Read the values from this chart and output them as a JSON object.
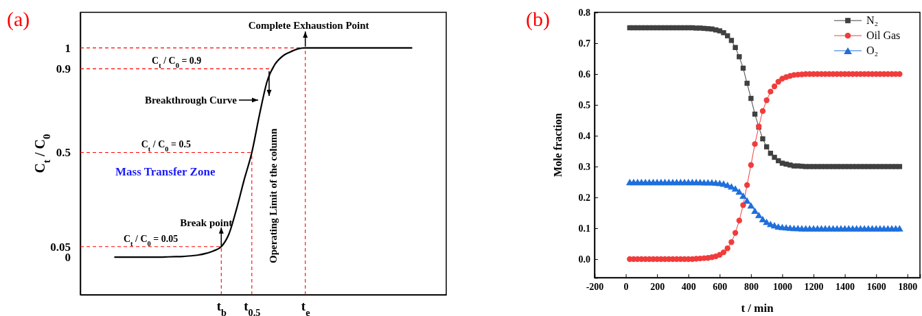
{
  "chart_data": [
    {
      "type": "line",
      "title": "(a)",
      "ylabel": "C$_{t}$ / C$_{0}$",
      "categories": [
        null,
        null,
        null,
        null,
        null,
        null,
        null,
        null,
        null,
        null,
        null,
        null,
        null,
        null,
        "t$_{b}$",
        null,
        null,
        null,
        "t$_{0.5}$",
        null,
        null,
        null,
        null,
        null,
        null,
        "t$_{e}$",
        null,
        null,
        null,
        null,
        null,
        null,
        null,
        null,
        null,
        null,
        null,
        null,
        null,
        null
      ],
      "ylim": [
        -0.18,
        1.17
      ],
      "yticks": [
        0,
        0.05,
        0.5,
        0.9,
        1
      ],
      "series": [
        {
          "color": "#000000",
          "values": [
            0,
            0,
            0,
            0,
            0,
            0,
            0,
            0.001,
            0.002,
            0.003,
            0.006,
            0.01,
            0.018,
            0.03,
            0.05,
            0.11,
            0.23,
            0.37,
            0.5,
            0.68,
            0.84,
            0.92,
            0.96,
            0.98,
            0.995,
            1,
            1,
            1,
            1,
            1,
            1,
            1,
            1,
            1,
            1,
            1,
            1,
            1,
            1,
            1
          ]
        }
      ],
      "marker": "none",
      "line_style": "solid",
      "ref_lines": [
        {
          "axis": "y",
          "value": 1,
          "color": "#ff0000",
          "line_style": "dashed"
        },
        {
          "axis": "y",
          "value": 0.9,
          "label": "C$_{t}$ / C$_{0}$ = 0.9",
          "color": "#ff0000",
          "line_style": "dashed"
        },
        {
          "axis": "y",
          "value": 0.5,
          "label": "C$_{t}$ / C$_{0}$ = 0.5",
          "color": "#ff0000",
          "line_style": "dashed"
        },
        {
          "axis": "y",
          "value": 0.05,
          "label": "C$_{t}$ / C$_{0}$ = 0.05",
          "color": "#ff0000",
          "line_style": "dashed"
        },
        {
          "axis": "x",
          "value": "t$_{b}$",
          "color": "#ff0000",
          "line_style": "dashed"
        },
        {
          "axis": "x",
          "value": "t$_{0.5}$",
          "color": "#ff0000",
          "line_style": "dashed"
        },
        {
          "axis": "x",
          "value": "t$_{e}$",
          "color": "#ff0000",
          "line_style": "dashed"
        }
      ],
      "annotations": [
        {
          "text": "Complete Exhaustion Point",
          "x": "t$_{e}$",
          "y": 1
        },
        "Breakthrough Curve",
        "Operating Limit of the column",
        {
          "text": "Break point",
          "x": "t$_{b}$",
          "y": 0.05
        },
        "Mass Transfer Zone"
      ]
    },
    {
      "type": "line",
      "title": "(b)",
      "xlabel": "t / min",
      "ylabel": "Mole fraction",
      "xlim": [
        -200,
        1880
      ],
      "ylim": [
        -0.06,
        0.8
      ],
      "xticks": [
        -200,
        0,
        200,
        400,
        600,
        800,
        1000,
        1200,
        1400,
        1600,
        1800
      ],
      "yticks": [
        {
          "value": 0,
          "label": "0.0"
        },
        0.1,
        0.2,
        0.3,
        0.4,
        0.5,
        0.6,
        0.7,
        0.8
      ],
      "legend": "top right",
      "line_style": "solid",
      "x": [
        25,
        50,
        75,
        100,
        125,
        150,
        175,
        200,
        225,
        250,
        275,
        300,
        325,
        350,
        375,
        400,
        425,
        450,
        475,
        500,
        525,
        550,
        575,
        600,
        625,
        650,
        675,
        700,
        725,
        750,
        775,
        800,
        825,
        850,
        875,
        900,
        925,
        950,
        975,
        1000,
        1025,
        1050,
        1075,
        1100,
        1125,
        1150,
        1175,
        1200,
        1225,
        1250,
        1275,
        1300,
        1325,
        1350,
        1375,
        1400,
        1425,
        1450,
        1475,
        1500,
        1525,
        1550,
        1575,
        1600,
        1625,
        1650,
        1675,
        1700,
        1725,
        1750
      ],
      "series": [
        {
          "name": "N₂",
          "color": "#404040",
          "marker": "square",
          "values": [
            0.75,
            0.75,
            0.75,
            0.75,
            0.75,
            0.75,
            0.75,
            0.75,
            0.75,
            0.75,
            0.75,
            0.75,
            0.75,
            0.75,
            0.75,
            0.75,
            0.75,
            0.749,
            0.749,
            0.748,
            0.747,
            0.746,
            0.743,
            0.74,
            0.734,
            0.724,
            0.709,
            0.686,
            0.656,
            0.619,
            0.57,
            0.521,
            0.47,
            0.428,
            0.39,
            0.364,
            0.343,
            0.33,
            0.319,
            0.311,
            0.308,
            0.305,
            0.302,
            0.302,
            0.301,
            0.3,
            0.3,
            0.3,
            0.3,
            0.3,
            0.3,
            0.3,
            0.3,
            0.3,
            0.3,
            0.3,
            0.3,
            0.3,
            0.3,
            0.3,
            0.3,
            0.3,
            0.3,
            0.3,
            0.3,
            0.3,
            0.3,
            0.3,
            0.3,
            0.3
          ]
        },
        {
          "name": "Oil Gas",
          "color": "#f03c3c",
          "marker": "circle",
          "values": [
            0,
            0,
            0,
            0,
            0,
            0,
            0,
            0,
            0,
            0,
            0,
            0,
            0,
            0,
            0,
            0,
            0,
            0.001,
            0.002,
            0.003,
            0.004,
            0.006,
            0.009,
            0.014,
            0.022,
            0.035,
            0.055,
            0.085,
            0.125,
            0.175,
            0.24,
            0.305,
            0.373,
            0.43,
            0.48,
            0.515,
            0.543,
            0.56,
            0.575,
            0.585,
            0.59,
            0.594,
            0.597,
            0.598,
            0.599,
            0.6,
            0.6,
            0.6,
            0.6,
            0.6,
            0.6,
            0.6,
            0.6,
            0.6,
            0.6,
            0.6,
            0.6,
            0.6,
            0.6,
            0.6,
            0.6,
            0.6,
            0.6,
            0.6,
            0.6,
            0.6,
            0.6,
            0.6,
            0.6,
            0.6
          ]
        },
        {
          "name": "O₂",
          "color": "#1f6fdc",
          "marker": "triangle",
          "values": [
            0.25,
            0.25,
            0.25,
            0.25,
            0.25,
            0.25,
            0.25,
            0.25,
            0.25,
            0.25,
            0.25,
            0.25,
            0.25,
            0.25,
            0.25,
            0.25,
            0.25,
            0.25,
            0.25,
            0.249,
            0.249,
            0.249,
            0.248,
            0.247,
            0.245,
            0.241,
            0.236,
            0.229,
            0.219,
            0.206,
            0.19,
            0.174,
            0.157,
            0.143,
            0.13,
            0.121,
            0.114,
            0.11,
            0.106,
            0.104,
            0.103,
            0.102,
            0.101,
            0.101,
            0.1,
            0.1,
            0.1,
            0.1,
            0.1,
            0.1,
            0.1,
            0.1,
            0.1,
            0.1,
            0.1,
            0.1,
            0.1,
            0.1,
            0.1,
            0.1,
            0.1,
            0.1,
            0.1,
            0.1,
            0.1,
            0.1,
            0.1,
            0.1,
            0.1,
            0.1
          ]
        }
      ]
    }
  ]
}
